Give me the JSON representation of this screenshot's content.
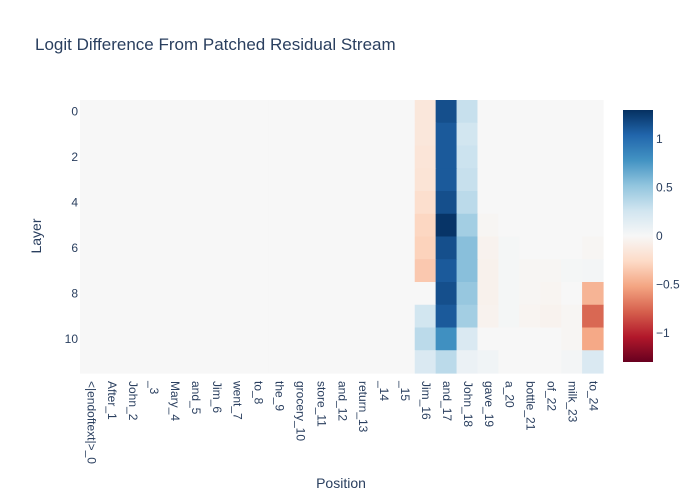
{
  "chart_data": {
    "type": "heatmap",
    "title": "Logit Difference From Patched Residual Stream",
    "xlabel": "Position",
    "ylabel": "Layer",
    "x_categories": [
      "<|endoftext|>_0",
      "After_1",
      "John_2",
      "_3",
      "Mary_4",
      "and_5",
      "Jim_6",
      "went_7",
      "to_8",
      "the_9",
      "grocery_10",
      "store_11",
      "and_12",
      "return_13",
      "_14",
      "_15",
      "Jim_16",
      "and_17",
      "John_18",
      "gave_19",
      "a_20",
      "bottle_21",
      "of_22",
      "milk_23",
      "to_24"
    ],
    "y_categories": [
      0,
      1,
      2,
      3,
      4,
      5,
      6,
      7,
      8,
      9,
      10,
      11
    ],
    "y_tick_labels": [
      "0",
      "2",
      "4",
      "6",
      "8",
      "10"
    ],
    "colorscale": "RdBu",
    "zmin": -1.3,
    "zmax": 1.3,
    "colorbar_ticks": [
      1,
      0.5,
      0,
      -0.5,
      -1
    ],
    "colorbar_tick_labels": [
      "1",
      "0.5",
      "0",
      "−0.5",
      "−1"
    ],
    "z": [
      [
        0,
        0,
        0,
        0,
        0,
        0,
        0,
        0,
        0,
        0,
        0,
        0,
        0,
        0,
        0,
        0,
        -0.15,
        1.15,
        0.3,
        0,
        0,
        0,
        0,
        0,
        0
      ],
      [
        0,
        0,
        0,
        0,
        0,
        0,
        0,
        0,
        0,
        0,
        0,
        0,
        0,
        0,
        0,
        0,
        -0.15,
        1.1,
        0.25,
        0,
        0,
        0,
        0,
        0,
        0
      ],
      [
        0,
        0,
        0,
        0,
        0,
        0,
        0,
        0,
        0,
        0,
        0,
        0,
        0,
        0,
        0,
        0,
        -0.17,
        1.1,
        0.28,
        0,
        0,
        0,
        0,
        0,
        0
      ],
      [
        0,
        0,
        0,
        0,
        0,
        0,
        0,
        0,
        0,
        0,
        0,
        0,
        0,
        0,
        0,
        0,
        -0.18,
        1.1,
        0.3,
        0,
        0,
        0,
        0,
        0,
        0
      ],
      [
        0,
        0,
        0,
        0,
        0,
        0,
        0,
        0,
        0,
        0,
        0,
        0,
        0,
        0,
        0,
        0,
        -0.22,
        1.15,
        0.35,
        0,
        0,
        0,
        0,
        0,
        0
      ],
      [
        0,
        0,
        0,
        0,
        0,
        0,
        0,
        0,
        0,
        0,
        0,
        0,
        0,
        0,
        0,
        0,
        -0.28,
        1.28,
        0.45,
        -0.02,
        0,
        0,
        0,
        0,
        0
      ],
      [
        0,
        0,
        0,
        0,
        0,
        0,
        0,
        0,
        0,
        0,
        0,
        0,
        0,
        0,
        0,
        0,
        -0.3,
        1.15,
        0.55,
        -0.05,
        0.02,
        0,
        0,
        0,
        -0.02
      ],
      [
        0,
        0,
        0,
        0,
        0,
        0,
        0,
        0,
        0,
        0,
        0,
        0,
        0,
        0,
        0,
        0,
        -0.35,
        1.1,
        0.55,
        -0.06,
        0.02,
        -0.02,
        -0.02,
        0.02,
        0.03
      ],
      [
        0,
        0,
        0,
        0,
        0,
        0,
        0,
        0,
        0,
        0,
        0,
        0,
        0,
        0,
        0,
        0,
        0,
        1.15,
        0.5,
        -0.06,
        0.02,
        -0.02,
        -0.03,
        0,
        -0.45
      ],
      [
        0,
        0,
        0,
        0,
        0,
        0,
        0,
        0,
        0,
        0,
        0,
        0,
        0,
        0,
        0,
        0,
        0.25,
        1.1,
        0.45,
        -0.05,
        0.02,
        -0.03,
        -0.05,
        -0.02,
        -0.75
      ],
      [
        0,
        0,
        0,
        0,
        0,
        0,
        0,
        0,
        0,
        0,
        0,
        0,
        0,
        0,
        0,
        0,
        0.35,
        0.8,
        0.2,
        0,
        0,
        0,
        0,
        -0.02,
        -0.5
      ],
      [
        0,
        0,
        0,
        0,
        0,
        0,
        0,
        0,
        0,
        0,
        0,
        0,
        0,
        0,
        0,
        0,
        0.2,
        0.35,
        0.08,
        0.05,
        0,
        0,
        0,
        0.03,
        0.2
      ]
    ]
  }
}
